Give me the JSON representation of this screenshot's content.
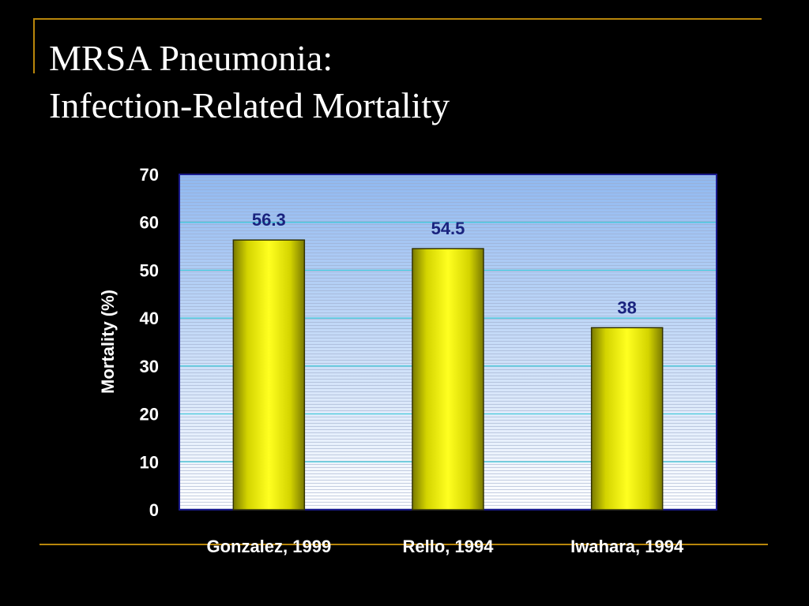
{
  "slide": {
    "title_line1": "MRSA Pneumonia:",
    "title_line2": "Infection-Related Mortality"
  },
  "colors": {
    "background": "#000000",
    "accent_line": "#b8860b",
    "bar_fill": "#f2f200",
    "data_label": "#1a237e",
    "plot_top": "#8fb8f0",
    "plot_bottom": "#ffffff",
    "gridline": "#3cc8d8"
  },
  "chart_data": {
    "type": "bar",
    "categories": [
      "Gonzalez, 1999",
      "Rello, 1994",
      "Iwahara, 1994"
    ],
    "values": [
      56.3,
      54.5,
      38
    ],
    "data_labels": [
      "56.3",
      "54.5",
      "38"
    ],
    "ylabel": "Mortality (%)",
    "ylim": [
      0,
      70
    ],
    "yticks": [
      0,
      10,
      20,
      30,
      40,
      50,
      60,
      70
    ],
    "grid": true
  }
}
